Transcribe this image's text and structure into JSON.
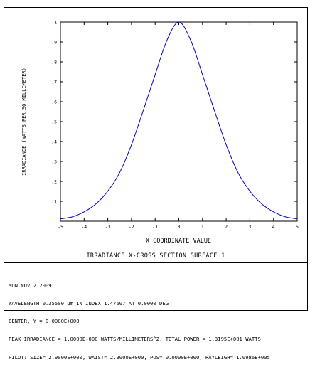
{
  "chart_data": {
    "type": "line",
    "title": "IRRADIANCE X-CROSS SECTION SURFACE 1",
    "xlabel": "X COORDINATE VALUE",
    "ylabel": "IRRADIANCE (WATTS PER SQ MILLIMETER)",
    "xlim": [
      -5,
      5
    ],
    "ylim": [
      0,
      1
    ],
    "xticks": [
      -5,
      -4,
      -3,
      -2,
      -1,
      0,
      1,
      2,
      3,
      4,
      5
    ],
    "xtick_labels": [
      "-5",
      "-4",
      "-3",
      "-2",
      "-1",
      "0",
      "1",
      "2",
      "3",
      "4",
      "5"
    ],
    "yticks": [
      0.1,
      0.2,
      0.3,
      0.4,
      0.5,
      0.6,
      0.7,
      0.8,
      0.9,
      1
    ],
    "ytick_labels": [
      ".1",
      ".2",
      ".3",
      ".4",
      ".5",
      ".6",
      ".7",
      ".8",
      ".9",
      "1"
    ],
    "grid": false,
    "line_color": "#0000cc",
    "series": [
      {
        "x": [
          -5,
          -4.5,
          -4,
          -3.5,
          -3,
          -2.5,
          -2,
          -1.5,
          -1,
          -0.5,
          0,
          0.5,
          1,
          1.5,
          2,
          2.5,
          3,
          3.5,
          4,
          4.5,
          5
        ],
        "values": [
          0.012,
          0.022,
          0.047,
          0.087,
          0.151,
          0.244,
          0.384,
          0.557,
          0.736,
          0.909,
          1.0,
          0.909,
          0.736,
          0.557,
          0.384,
          0.244,
          0.151,
          0.087,
          0.047,
          0.022,
          0.012
        ]
      }
    ]
  },
  "info": {
    "line1": "MON NOV 2 2009",
    "line2": "WAVELENGTH 0.35500 µm IN INDEX 1.47607 AT 0.0000 DEG",
    "line3": "CENTER, Y = 0.0000E+000",
    "line4": "PEAK IRRADIANCE = 1.0000E+000 WATTS/MILLIMETERS^2, TOTAL POWER = 1.3195E+001 WATTS",
    "line5": "PILOT: SIZE= 2.9000E+000, WAIST= 2.9000E+000, POS= 0.0000E+000, RAYLEIGH= 1.0986E+005"
  }
}
